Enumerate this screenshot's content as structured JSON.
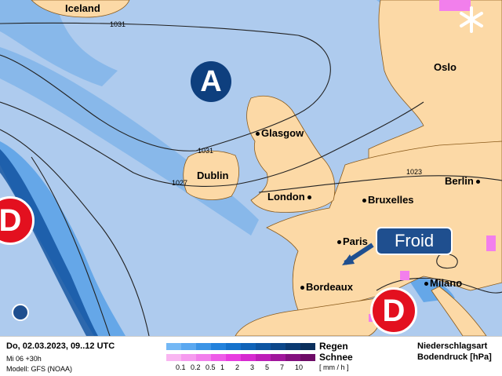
{
  "map": {
    "cities": [
      {
        "name": "Iceland",
        "dot": false
      },
      {
        "name": "Oslo",
        "dot": true
      },
      {
        "name": "Glasgow",
        "dot": true
      },
      {
        "name": "Dublin",
        "dot": true
      },
      {
        "name": "London",
        "dot": true
      },
      {
        "name": "Bruxelles",
        "dot": true
      },
      {
        "name": "Berlin",
        "dot": true
      },
      {
        "name": "Paris",
        "dot": true
      },
      {
        "name": "Bordeaux",
        "dot": true
      },
      {
        "name": "Milano",
        "dot": true
      }
    ],
    "isobars": [
      "1031",
      "1031",
      "1027",
      "1023"
    ],
    "high": "A",
    "lows": [
      "D",
      "D"
    ],
    "callout": "Froid",
    "snow_icon": "snowflake-icon",
    "colors": {
      "sea": "#aecbee",
      "land": "#fcd9a6",
      "high": "#0e3f7e",
      "low": "#e3101f",
      "callout": "#1f4f8f"
    }
  },
  "legend": {
    "datetime": "Do, 02.03.2023, 09..12 UTC",
    "run": "Mi 06 +30h",
    "model": "Modell: GFS (NOAA)",
    "rain_label": "Regen",
    "snow_label": "Schnee",
    "unit": "[ mm / h ]",
    "ticks": [
      "0.1",
      "0.2",
      "0.5",
      "1",
      "2",
      "3",
      "5",
      "7",
      "10"
    ],
    "title1": "Niederschlagsart",
    "title2": "Bodendruck [hPa]",
    "rain_colors": [
      "#74b8f5",
      "#5aa8f0",
      "#3b94e6",
      "#2282dc",
      "#1472cc",
      "#0f63b8",
      "#0d55a2",
      "#0c478a",
      "#0b3a72",
      "#0a2f5c"
    ],
    "snow_colors": [
      "#f9b6f1",
      "#f69bef",
      "#f27fec",
      "#ee5ce8",
      "#e83ce0",
      "#d62ad0",
      "#bd1eb8",
      "#a0169c",
      "#84107f",
      "#6d0b66"
    ]
  }
}
